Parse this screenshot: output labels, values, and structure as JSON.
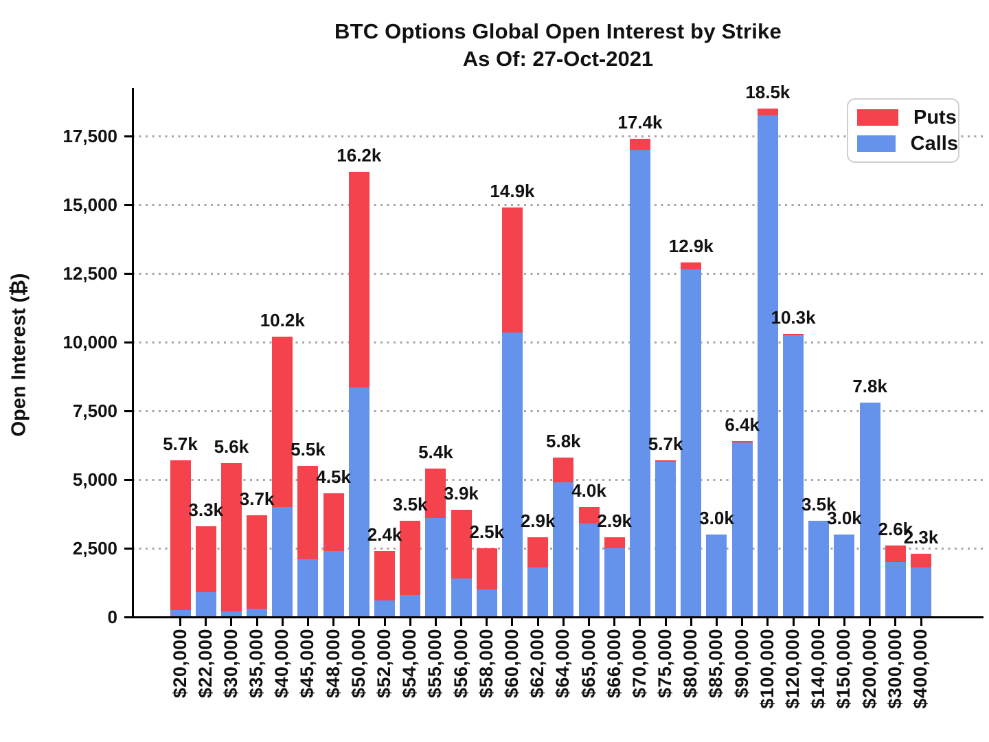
{
  "title": "BTC Options Global Open Interest by Strike",
  "subtitle": "As Of: 27-Oct-2021",
  "ylabel": "Open Interest (₿)",
  "legend": {
    "puts_label": "Puts",
    "calls_label": "Calls"
  },
  "colors": {
    "puts": "#F4434C",
    "calls": "#6593EC",
    "grid": "#A6A6A6",
    "text": "#111111",
    "axis": "#000000",
    "legend_border": "#CFCFCF"
  },
  "chart_data": {
    "type": "bar",
    "stacked": true,
    "title": "BTC Options Global Open Interest by Strike",
    "subtitle": "As Of: 27-Oct-2021",
    "xlabel": "",
    "ylabel": "Open Interest (₿)",
    "ylim": [
      0,
      19250
    ],
    "grid": "horizontal-dotted",
    "legend_position": "top-right",
    "categories": [
      "$20,000",
      "$22,000",
      "$30,000",
      "$35,000",
      "$40,000",
      "$45,000",
      "$48,000",
      "$50,000",
      "$52,000",
      "$54,000",
      "$55,000",
      "$56,000",
      "$58,000",
      "$60,000",
      "$62,000",
      "$64,000",
      "$65,000",
      "$66,000",
      "$70,000",
      "$75,000",
      "$80,000",
      "$85,000",
      "$90,000",
      "$100,000",
      "$120,000",
      "$140,000",
      "$150,000",
      "$200,000",
      "$300,000",
      "$400,000"
    ],
    "series": [
      {
        "name": "Calls",
        "color_key": "calls",
        "values": [
          250,
          900,
          200,
          300,
          4000,
          2100,
          2400,
          8350,
          600,
          800,
          3600,
          1400,
          1000,
          10350,
          1800,
          4900,
          3400,
          2500,
          17000,
          5650,
          12650,
          3000,
          6350,
          18250,
          10250,
          3500,
          3000,
          7800,
          2000,
          1800
        ]
      },
      {
        "name": "Puts",
        "color_key": "puts",
        "values": [
          5450,
          2400,
          5400,
          3400,
          6200,
          3400,
          2100,
          7850,
          1800,
          2700,
          1800,
          2500,
          1500,
          4550,
          1100,
          900,
          600,
          400,
          400,
          50,
          250,
          0,
          50,
          250,
          50,
          0,
          0,
          0,
          600,
          500
        ]
      }
    ],
    "bar_total_labels": [
      "5.7k",
      "3.3k",
      "5.6k",
      "3.7k",
      "10.2k",
      "5.5k",
      "4.5k",
      "16.2k",
      "2.4k",
      "3.5k",
      "5.4k",
      "3.9k",
      "2.5k",
      "14.9k",
      "2.9k",
      "5.8k",
      "4.0k",
      "2.9k",
      "17.4k",
      "5.7k",
      "12.9k",
      "3.0k",
      "6.4k",
      "18.5k",
      "10.3k",
      "3.5k",
      "3.0k",
      "7.8k",
      "2.6k",
      "2.3k"
    ],
    "y_ticks": [
      0,
      2500,
      5000,
      7500,
      10000,
      12500,
      15000,
      17500
    ],
    "y_tick_labels": [
      "0",
      "2,500",
      "5,000",
      "7,500",
      "10,000",
      "12,500",
      "15,000",
      "17,500"
    ]
  }
}
